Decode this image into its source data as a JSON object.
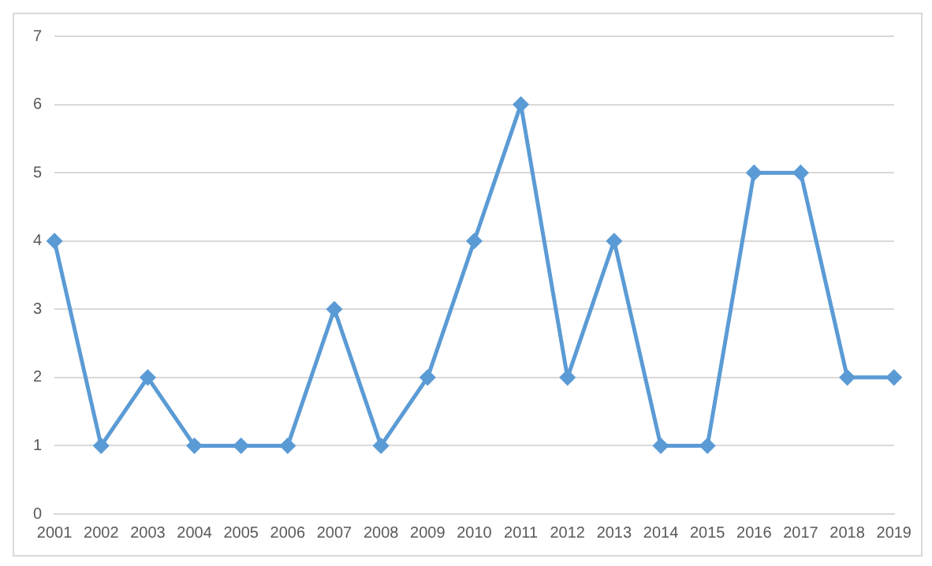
{
  "chart_data": {
    "type": "line",
    "categories": [
      "2001",
      "2002",
      "2003",
      "2004",
      "2005",
      "2006",
      "2007",
      "2008",
      "2009",
      "2010",
      "2011",
      "2012",
      "2013",
      "2014",
      "2015",
      "2016",
      "2017",
      "2018",
      "2019"
    ],
    "series": [
      {
        "color": "#5b9bd5",
        "values": [
          4,
          1,
          2,
          1,
          1,
          1,
          3,
          1,
          2,
          4,
          6,
          2,
          4,
          1,
          1,
          5,
          5,
          2,
          2
        ]
      }
    ],
    "ylim": [
      0,
      7
    ],
    "yticks": [
      0,
      1,
      2,
      3,
      4,
      5,
      6,
      7
    ],
    "grid": "y",
    "legend": false,
    "marker": "diamond",
    "line_style": "solid"
  }
}
